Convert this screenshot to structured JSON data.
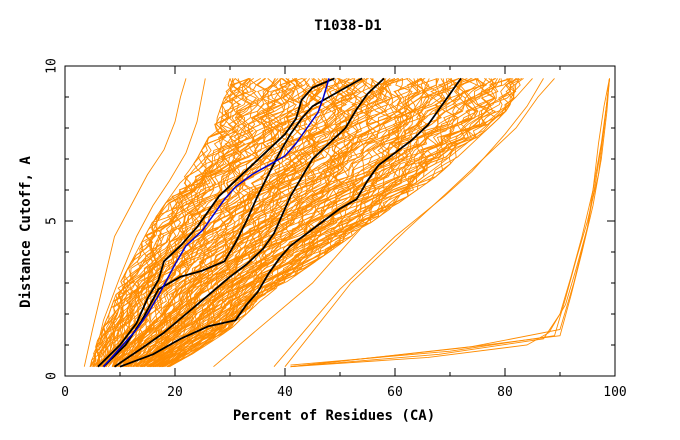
{
  "chart_data": {
    "type": "line",
    "title": "T1038-D1",
    "xlabel": "Percent of Residues (CA)",
    "ylabel": "Distance Cutoff, A",
    "xlim": [
      0,
      100
    ],
    "ylim": [
      0,
      10
    ],
    "x_ticks": [
      {
        "value": 0,
        "label": "0"
      },
      {
        "value": 20,
        "label": "20"
      },
      {
        "value": 40,
        "label": "40"
      },
      {
        "value": 60,
        "label": "60"
      },
      {
        "value": 80,
        "label": "80"
      },
      {
        "value": 100,
        "label": "100"
      }
    ],
    "y_ticks": [
      {
        "value": 0,
        "label": "0"
      },
      {
        "value": 5,
        "label": "5"
      },
      {
        "value": 10,
        "label": "10"
      }
    ],
    "grid": false,
    "band": {
      "name": "Other models (ensemble)",
      "color": "#ff8c00",
      "count": 150,
      "y_range": [
        0.3,
        9.6
      ],
      "left_edge": [
        [
          4.5,
          0.3
        ],
        [
          6,
          1.2
        ],
        [
          8,
          2
        ],
        [
          10,
          3
        ],
        [
          13,
          4
        ],
        [
          16,
          5
        ],
        [
          20,
          6
        ],
        [
          24,
          7
        ],
        [
          27,
          8
        ],
        [
          29,
          9
        ],
        [
          30,
          9.6
        ]
      ],
      "right_edge": [
        [
          19,
          0.3
        ],
        [
          24,
          0.8
        ],
        [
          30,
          1.5
        ],
        [
          36,
          2.5
        ],
        [
          44,
          3.5
        ],
        [
          52,
          4.5
        ],
        [
          60,
          5.5
        ],
        [
          68,
          6.5
        ],
        [
          74,
          7.5
        ],
        [
          80,
          8.5
        ],
        [
          84,
          9.6
        ]
      ]
    },
    "outliers": [
      {
        "name": "outlier-1",
        "color": "#ff8c00",
        "points": [
          [
            27,
            0.3
          ],
          [
            45,
            3
          ],
          [
            55,
            5
          ],
          [
            62,
            6
          ],
          [
            68,
            6.8
          ],
          [
            73,
            7.5
          ],
          [
            78,
            8.3
          ],
          [
            82,
            9
          ],
          [
            85,
            9.6
          ]
        ]
      },
      {
        "name": "outlier-2",
        "color": "#ff8c00",
        "points": [
          [
            38,
            0.3
          ],
          [
            50,
            2.8
          ],
          [
            60,
            4.5
          ],
          [
            69,
            5.8
          ],
          [
            74,
            6.6
          ],
          [
            80,
            7.8
          ],
          [
            84,
            8.7
          ],
          [
            87,
            9.6
          ]
        ]
      },
      {
        "name": "outlier-3",
        "color": "#ff8c00",
        "points": [
          [
            40,
            0.3
          ],
          [
            52,
            3
          ],
          [
            62,
            4.7
          ],
          [
            70,
            6
          ],
          [
            76,
            7
          ],
          [
            82,
            8
          ],
          [
            86,
            9
          ],
          [
            89,
            9.6
          ]
        ]
      },
      {
        "name": "outlier-4",
        "color": "#ff8c00",
        "points": [
          [
            3.5,
            0.3
          ],
          [
            5,
            1.5
          ],
          [
            7,
            3
          ],
          [
            9,
            4.5
          ],
          [
            12,
            5.5
          ],
          [
            15,
            6.5
          ],
          [
            18,
            7.3
          ],
          [
            20,
            8.2
          ],
          [
            21,
            9
          ],
          [
            22,
            9.6
          ]
        ]
      },
      {
        "name": "outlier-5",
        "color": "#ff8c00",
        "points": [
          [
            5,
            0.3
          ],
          [
            7,
            1.8
          ],
          [
            10,
            3.2
          ],
          [
            13,
            4.5
          ],
          [
            16,
            5.5
          ],
          [
            19,
            6.3
          ],
          [
            22,
            7.2
          ],
          [
            24,
            8.2
          ],
          [
            25.5,
            9.6
          ]
        ]
      }
    ],
    "far_models": [
      {
        "name": "far-model-1",
        "color": "#ff8c00",
        "points": [
          [
            41,
            0.3
          ],
          [
            66,
            0.6
          ],
          [
            84,
            1
          ],
          [
            88,
            1.4
          ],
          [
            91,
            2.3
          ],
          [
            93,
            3.5
          ],
          [
            95,
            4.8
          ],
          [
            96,
            6
          ],
          [
            97,
            7.5
          ],
          [
            98,
            8.7
          ],
          [
            99,
            9.6
          ]
        ]
      },
      {
        "name": "far-model-2",
        "color": "#ff8c00",
        "points": [
          [
            41,
            0.3
          ],
          [
            68,
            0.7
          ],
          [
            87,
            1.2
          ],
          [
            90,
            2
          ],
          [
            92,
            3.2
          ],
          [
            94,
            4.5
          ],
          [
            96,
            6
          ],
          [
            97.5,
            7.5
          ],
          [
            98.5,
            8.8
          ],
          [
            99,
            9.6
          ]
        ]
      },
      {
        "name": "far-model-3",
        "color": "#ff8c00",
        "points": [
          [
            41,
            0.35
          ],
          [
            70,
            0.8
          ],
          [
            89,
            1.3
          ],
          [
            91,
            2.5
          ],
          [
            93,
            3.8
          ],
          [
            95,
            5
          ],
          [
            97,
            6.5
          ],
          [
            98,
            8
          ],
          [
            99,
            9.6
          ]
        ]
      },
      {
        "name": "far-model-4",
        "color": "#ff8c00",
        "points": [
          [
            41,
            0.3
          ],
          [
            72,
            0.9
          ],
          [
            90,
            1.3
          ],
          [
            92,
            2.6
          ],
          [
            94,
            4
          ],
          [
            96,
            5.5
          ],
          [
            97.5,
            7
          ],
          [
            98.5,
            8.5
          ],
          [
            99,
            9.6
          ]
        ]
      },
      {
        "name": "far-model-5",
        "color": "#ff8c00",
        "points": [
          [
            41,
            0.3
          ],
          [
            74,
            0.95
          ],
          [
            90,
            1.5
          ],
          [
            92.5,
            3
          ],
          [
            95,
            4.8
          ],
          [
            96.5,
            6.3
          ],
          [
            98,
            8
          ],
          [
            99,
            9.6
          ]
        ]
      }
    ],
    "highlighted_series": [
      {
        "name": "black-model-1",
        "color": "#000000",
        "points": [
          [
            6,
            0.3
          ],
          [
            10,
            1
          ],
          [
            13,
            1.7
          ],
          [
            15,
            2.5
          ],
          [
            17,
            3.1
          ],
          [
            18,
            3.7
          ],
          [
            21,
            4.2
          ],
          [
            24,
            4.8
          ],
          [
            26,
            5.3
          ],
          [
            28,
            5.8
          ],
          [
            31,
            6.3
          ],
          [
            34,
            6.8
          ],
          [
            37,
            7.3
          ],
          [
            40,
            7.8
          ],
          [
            42,
            8.3
          ],
          [
            43,
            8.9
          ],
          [
            45,
            9.3
          ],
          [
            49,
            9.6
          ]
        ]
      },
      {
        "name": "black-model-2",
        "color": "#000000",
        "points": [
          [
            7,
            0.3
          ],
          [
            11,
            1
          ],
          [
            14,
            1.8
          ],
          [
            17,
            2.8
          ],
          [
            21,
            3.2
          ],
          [
            25,
            3.4
          ],
          [
            29,
            3.7
          ],
          [
            31,
            4.3
          ],
          [
            33,
            5
          ],
          [
            35,
            5.8
          ],
          [
            37,
            6.5
          ],
          [
            39,
            7.2
          ],
          [
            41,
            7.8
          ],
          [
            43,
            8.3
          ],
          [
            45,
            8.7
          ],
          [
            48,
            9
          ],
          [
            54,
            9.6
          ]
        ]
      },
      {
        "name": "black-model-3",
        "color": "#000000",
        "points": [
          [
            9,
            0.3
          ],
          [
            14,
            0.9
          ],
          [
            18,
            1.4
          ],
          [
            22,
            2
          ],
          [
            26,
            2.6
          ],
          [
            30,
            3.2
          ],
          [
            33,
            3.6
          ],
          [
            36,
            4.1
          ],
          [
            38,
            4.6
          ],
          [
            39.5,
            5.2
          ],
          [
            41,
            5.8
          ],
          [
            43,
            6.4
          ],
          [
            45,
            7
          ],
          [
            48,
            7.5
          ],
          [
            51,
            8
          ],
          [
            53,
            8.6
          ],
          [
            55,
            9.1
          ],
          [
            58,
            9.6
          ]
        ]
      },
      {
        "name": "black-model-4",
        "color": "#000000",
        "points": [
          [
            10,
            0.3
          ],
          [
            16,
            0.7
          ],
          [
            21,
            1.2
          ],
          [
            26,
            1.6
          ],
          [
            31,
            1.8
          ],
          [
            33,
            2.3
          ],
          [
            35,
            2.7
          ],
          [
            37,
            3.3
          ],
          [
            39,
            3.8
          ],
          [
            41,
            4.2
          ],
          [
            44,
            4.6
          ],
          [
            47,
            5
          ],
          [
            50,
            5.4
          ],
          [
            53,
            5.7
          ],
          [
            55,
            6.3
          ],
          [
            57,
            6.8
          ],
          [
            60,
            7.2
          ],
          [
            63,
            7.6
          ],
          [
            66,
            8.1
          ],
          [
            68,
            8.6
          ],
          [
            70,
            9.1
          ],
          [
            72,
            9.6
          ]
        ]
      }
    ],
    "reference_series": {
      "name": "blue-model",
      "color": "#0000cc",
      "points": [
        [
          7,
          0.3
        ],
        [
          10,
          0.9
        ],
        [
          13,
          1.5
        ],
        [
          15,
          2
        ],
        [
          17,
          2.6
        ],
        [
          18.5,
          3.1
        ],
        [
          20,
          3.6
        ],
        [
          22,
          4.2
        ],
        [
          25,
          4.7
        ],
        [
          27,
          5.2
        ],
        [
          29,
          5.7
        ],
        [
          31,
          6.1
        ],
        [
          34,
          6.5
        ],
        [
          37,
          6.8
        ],
        [
          40,
          7.1
        ],
        [
          42,
          7.5
        ],
        [
          44,
          8
        ],
        [
          46,
          8.5
        ],
        [
          47,
          9
        ],
        [
          48,
          9.6
        ]
      ]
    }
  }
}
